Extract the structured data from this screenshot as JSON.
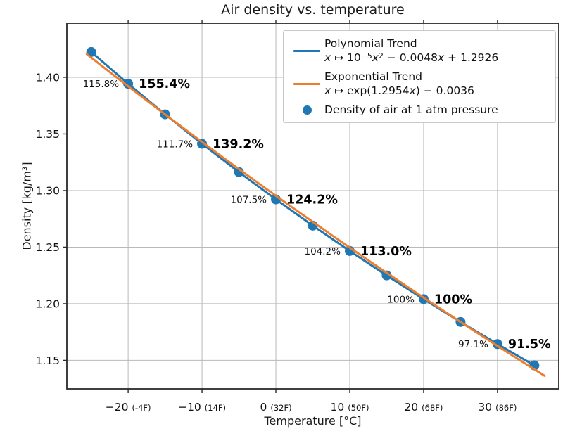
{
  "chart_data": {
    "type": "scatter",
    "title": "Air density vs. temperature",
    "xlabel": "Temperature [°C]",
    "ylabel": "Density [kg/m³]",
    "xlim": [
      -28.3,
      38.3
    ],
    "ylim": [
      1.1248,
      1.4478
    ],
    "grid": true,
    "legend_position": "upper right",
    "colors": {
      "blue": "#1f77b4",
      "orange": "#ee7e2e",
      "grid": "#b9b9b9",
      "axis": "#2a2a2a",
      "text": "#111111"
    },
    "x_ticks": [
      {
        "value": -20,
        "label": "−20",
        "f_label": "(-4F)"
      },
      {
        "value": -10,
        "label": "−10",
        "f_label": "(14F)"
      },
      {
        "value": 0,
        "label": "0",
        "f_label": "(32F)"
      },
      {
        "value": 10,
        "label": "10",
        "f_label": "(50F)"
      },
      {
        "value": 20,
        "label": "20",
        "f_label": "(68F)"
      },
      {
        "value": 30,
        "label": "30",
        "f_label": "(86F)"
      }
    ],
    "y_ticks": [
      {
        "value": 1.4,
        "label": "1.40"
      },
      {
        "value": 1.35,
        "label": "1.35"
      },
      {
        "value": 1.3,
        "label": "1.30"
      },
      {
        "value": 1.25,
        "label": "1.25"
      },
      {
        "value": 1.2,
        "label": "1.20"
      },
      {
        "value": 1.15,
        "label": "1.15"
      }
    ],
    "points": {
      "name": "Density of air at 1 atm pressure",
      "x": [
        -25,
        -20,
        -15,
        -10,
        -5,
        0,
        5,
        10,
        15,
        20,
        25,
        30,
        35
      ],
      "y": [
        1.4224,
        1.3943,
        1.3673,
        1.3413,
        1.3163,
        1.2922,
        1.269,
        1.2466,
        1.225,
        1.2041,
        1.1839,
        1.1644,
        1.1455
      ]
    },
    "trends": [
      {
        "name": "Polynomial Trend",
        "formula_text": "x ↦ 10⁻⁵x² − 0.0048x + 1.2926",
        "formula_parts": [
          {
            "t": "x",
            "s": "i"
          },
          {
            "t": " ↦ 10",
            "s": ""
          },
          {
            "t": "−5",
            "s": "sup"
          },
          {
            "t": "x",
            "s": "i"
          },
          {
            "t": "2",
            "s": "sup"
          },
          {
            "t": " − 0.0048",
            "s": ""
          },
          {
            "t": "x",
            "s": "i"
          },
          {
            "t": " + 1.2926",
            "s": ""
          }
        ],
        "draw": {
          "type": "through-points"
        }
      },
      {
        "name": "Exponential Trend",
        "formula_text": "x ↦ exp(1.2954x) − 0.0036",
        "formula_parts": [
          {
            "t": "x",
            "s": "i"
          },
          {
            "t": " ↦ exp(1.2954",
            "s": ""
          },
          {
            "t": "x",
            "s": "i"
          },
          {
            "t": ") − 0.0036",
            "s": ""
          }
        ],
        "draw": {
          "type": "exp",
          "A": 1.2954,
          "k": -0.0036,
          "x_start": -25.6,
          "x_end": 36.4
        }
      }
    ],
    "annotations": [
      {
        "x": -20,
        "y": 1.3943,
        "left": "115.8%",
        "right": "155.4%"
      },
      {
        "x": -10,
        "y": 1.3413,
        "left": "111.7%",
        "right": "139.2%"
      },
      {
        "x": 0,
        "y": 1.2922,
        "left": "107.5%",
        "right": "124.2%"
      },
      {
        "x": 10,
        "y": 1.2466,
        "left": "104.2%",
        "right": "113.0%"
      },
      {
        "x": 20,
        "y": 1.2041,
        "left": "100%",
        "right": "100%"
      },
      {
        "x": 30,
        "y": 1.1644,
        "left": "97.1%",
        "right": "91.5%"
      }
    ]
  }
}
